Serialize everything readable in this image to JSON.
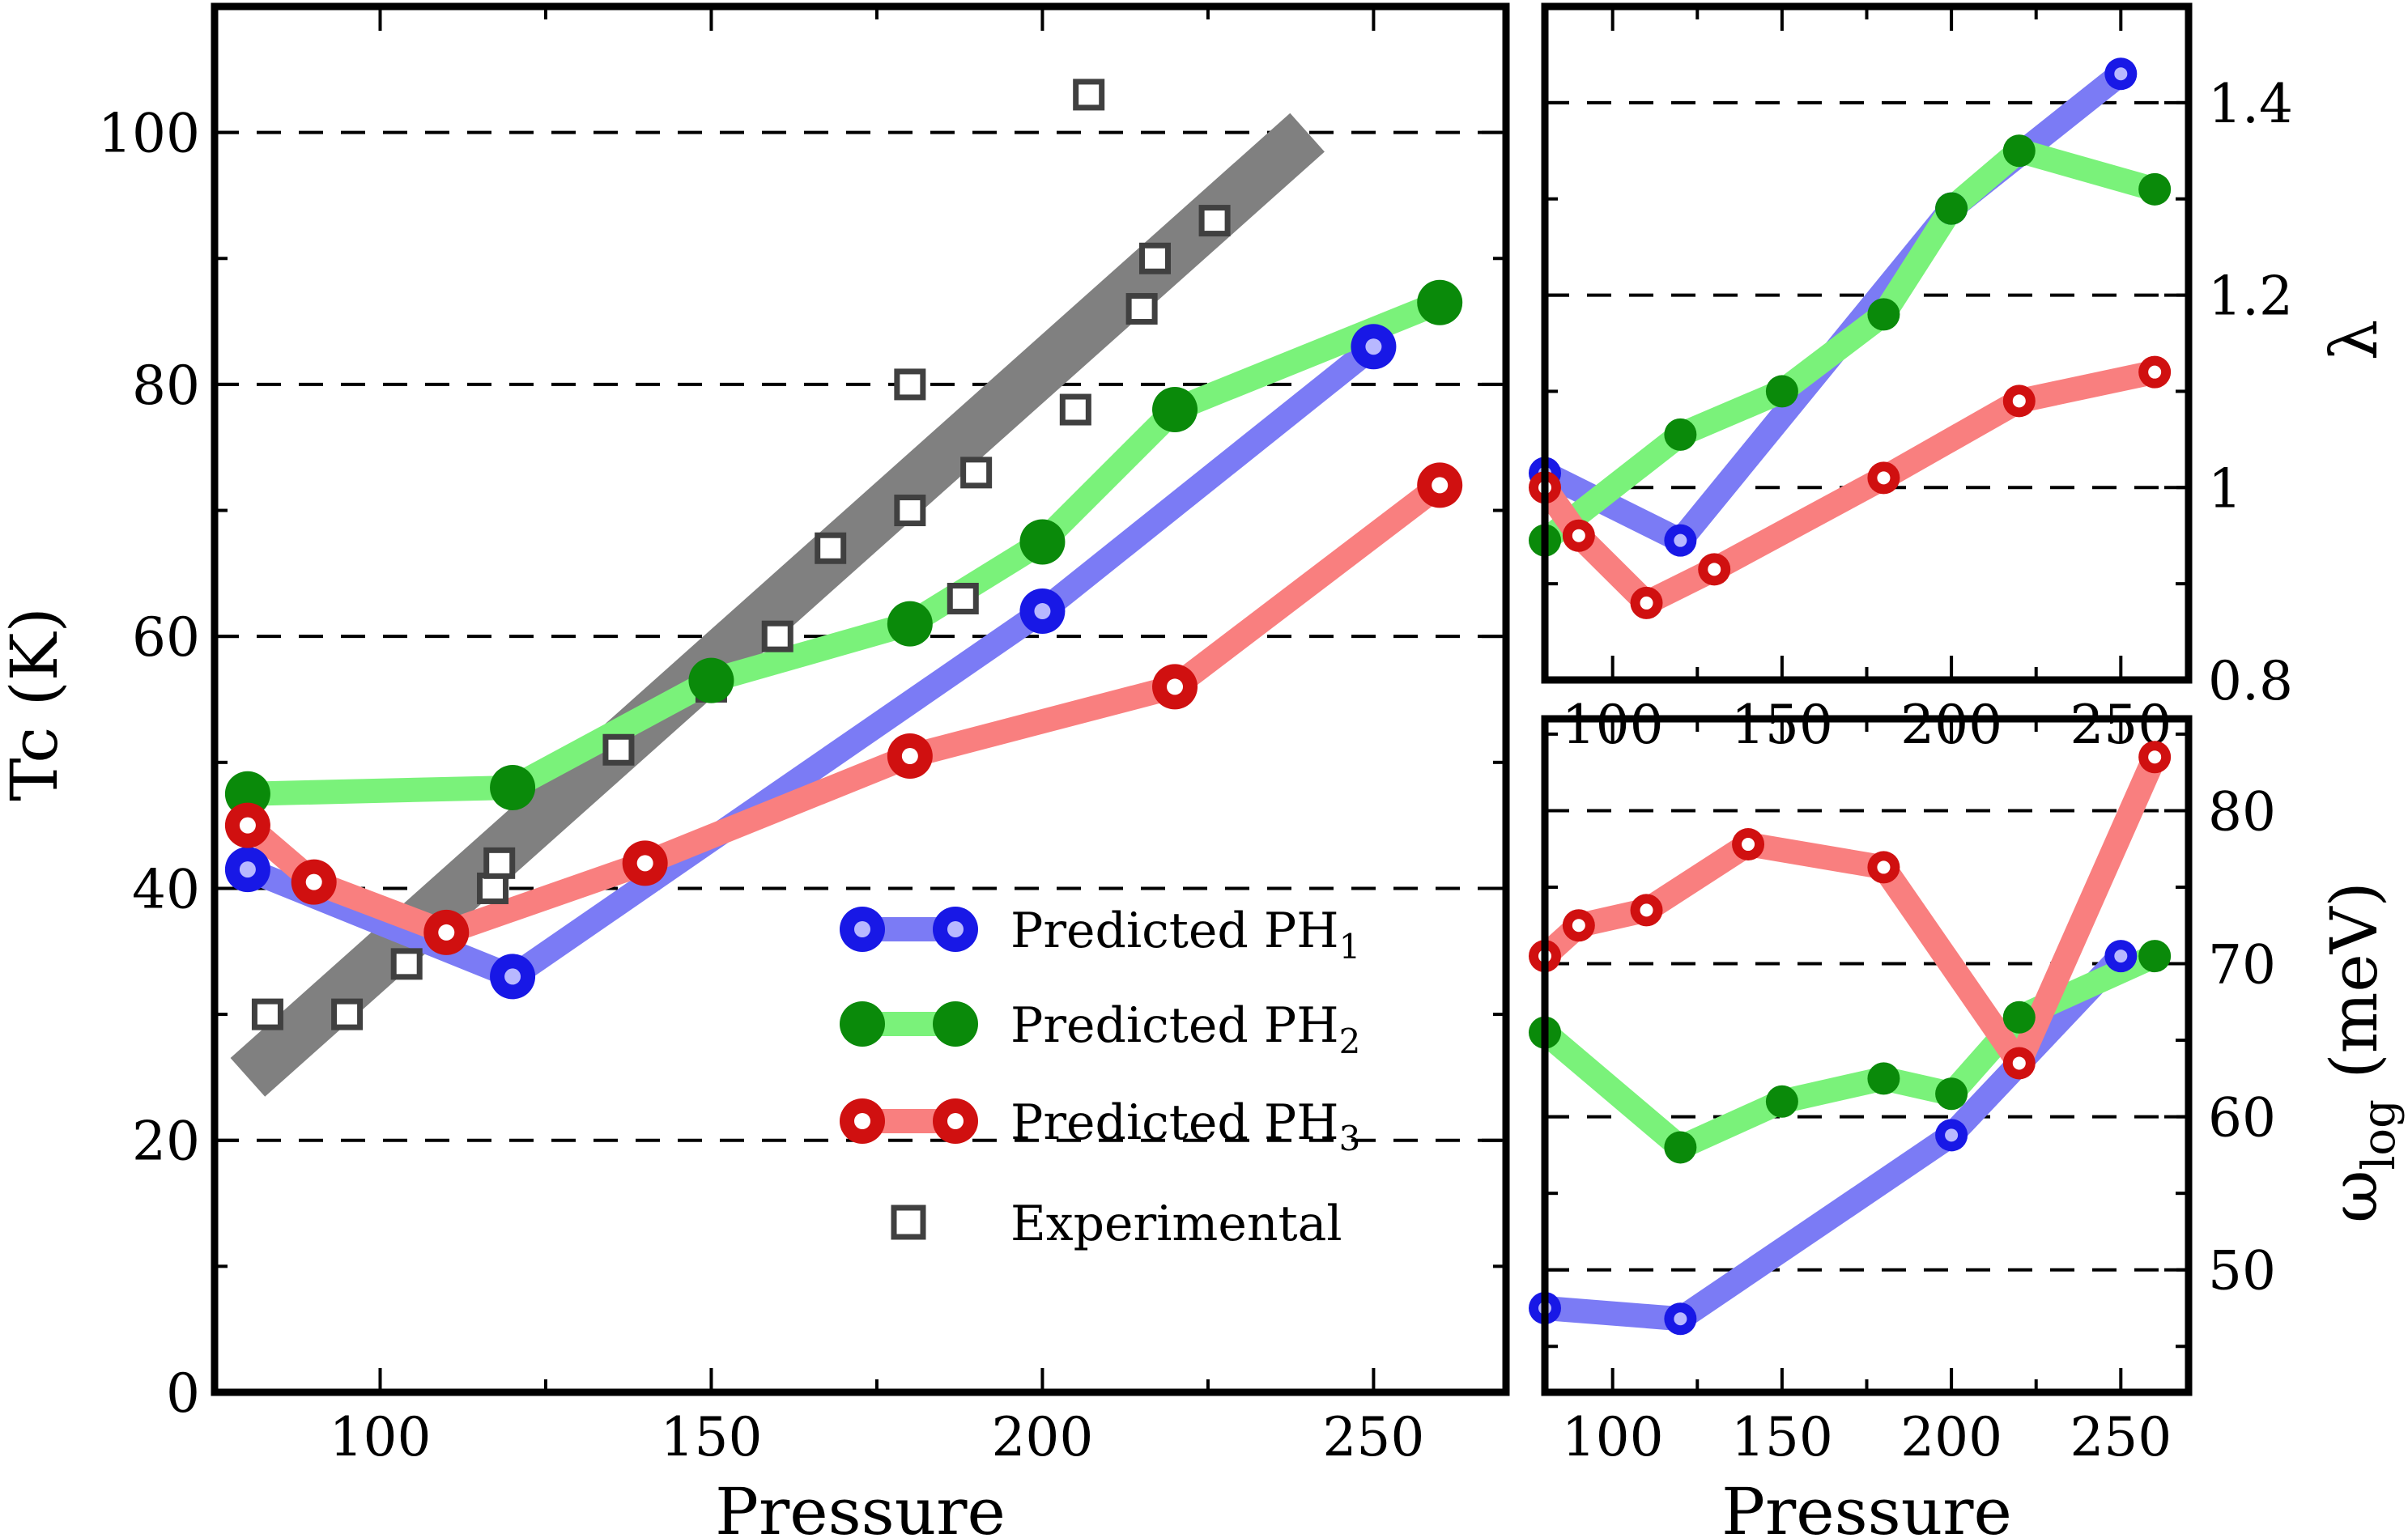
{
  "chart_data": [
    {
      "type": "line",
      "panel": "main",
      "xlabel": "Pressure",
      "ylabel": "Tc (K)",
      "xlim": [
        75,
        270
      ],
      "ylim": [
        0,
        110
      ],
      "xticks": [
        100,
        150,
        200,
        250
      ],
      "yticks": [
        0,
        20,
        40,
        60,
        80,
        100
      ],
      "grid_y": [
        20,
        40,
        60,
        80,
        100
      ],
      "band": {
        "x": [
          80,
          240
        ],
        "y": [
          25,
          100
        ],
        "color": "#808080"
      },
      "series": [
        {
          "name": "Predicted PH",
          "sub": "1",
          "color": "#7b7bf5",
          "marker": "#1818e6",
          "x": [
            80,
            120,
            200,
            250
          ],
          "y": [
            41.5,
            33,
            62,
            83
          ]
        },
        {
          "name": "Predicted PH",
          "sub": "2",
          "color": "#7af27a",
          "marker": "#0a8a0a",
          "x": [
            80,
            120,
            150,
            180,
            200,
            220,
            260
          ],
          "y": [
            47.5,
            48,
            56.5,
            61,
            67.5,
            78,
            86.5
          ]
        },
        {
          "name": "Predicted PH",
          "sub": "3",
          "color": "#f97f7f",
          "marker": "#d01010",
          "x": [
            80,
            90,
            110,
            140,
            180,
            220,
            260
          ],
          "y": [
            45,
            40.5,
            36.5,
            42,
            50.5,
            56,
            72
          ]
        }
      ],
      "experimental": {
        "name": "Experimental",
        "color": "#404040",
        "x": [
          83,
          95,
          104,
          117,
          118,
          136,
          150,
          160,
          168,
          180,
          180,
          188,
          190,
          205,
          207,
          215,
          217,
          226
        ],
        "y": [
          30,
          30,
          34,
          40,
          42,
          51,
          56,
          60,
          67,
          70,
          80,
          63,
          73,
          78,
          103,
          86,
          90,
          93
        ]
      }
    },
    {
      "type": "line",
      "panel": "lambda",
      "xlabel": "",
      "ylabel": "λ",
      "xlim": [
        80,
        270
      ],
      "ylim": [
        0.8,
        1.5
      ],
      "xticks": [
        100,
        150,
        200,
        250
      ],
      "yticks": [
        0.8,
        1,
        1.2,
        1.4
      ],
      "ytick_labels": [
        "0.8",
        "1",
        "1.2",
        "1.4"
      ],
      "grid_y": [
        1.0,
        1.2,
        1.4
      ],
      "series": [
        {
          "name": "PH1",
          "color": "#7b7bf5",
          "marker": "#1818e6",
          "x": [
            80,
            120,
            200,
            250
          ],
          "y": [
            1.015,
            0.945,
            1.29,
            1.43
          ]
        },
        {
          "name": "PH2",
          "color": "#7af27a",
          "marker": "#0a8a0a",
          "x": [
            80,
            120,
            150,
            180,
            200,
            220,
            260
          ],
          "y": [
            0.945,
            1.055,
            1.1,
            1.18,
            1.29,
            1.35,
            1.31
          ]
        },
        {
          "name": "PH3",
          "color": "#f97f7f",
          "marker": "#d01010",
          "x": [
            80,
            90,
            110,
            130,
            180,
            220,
            260
          ],
          "y": [
            1.0,
            0.95,
            0.88,
            0.915,
            1.01,
            1.09,
            1.12
          ]
        }
      ]
    },
    {
      "type": "line",
      "panel": "omega",
      "xlabel": "Pressure",
      "ylabel": "ω",
      "ylabel_sub": "log",
      "ylabel_unit": " (meV)",
      "xlim": [
        80,
        270
      ],
      "ylim": [
        42,
        86
      ],
      "xticks": [
        100,
        150,
        200,
        250
      ],
      "yticks": [
        50,
        60,
        70,
        80
      ],
      "grid_y": [
        50,
        60,
        70,
        80
      ],
      "series": [
        {
          "name": "PH1",
          "color": "#7b7bf5",
          "marker": "#1818e6",
          "x": [
            80,
            120,
            200,
            250
          ],
          "y": [
            47.5,
            46.8,
            58.8,
            70.5
          ]
        },
        {
          "name": "PH2",
          "color": "#7af27a",
          "marker": "#0a8a0a",
          "x": [
            80,
            120,
            150,
            180,
            200,
            220,
            260
          ],
          "y": [
            65.5,
            58,
            61,
            62.5,
            61.5,
            66.5,
            70.5
          ]
        },
        {
          "name": "PH3",
          "color": "#f97f7f",
          "marker": "#d01010",
          "x": [
            80,
            90,
            110,
            140,
            180,
            220,
            260
          ],
          "y": [
            70.5,
            72.5,
            73.5,
            77.8,
            76.3,
            63.5,
            83.5
          ]
        }
      ]
    }
  ]
}
